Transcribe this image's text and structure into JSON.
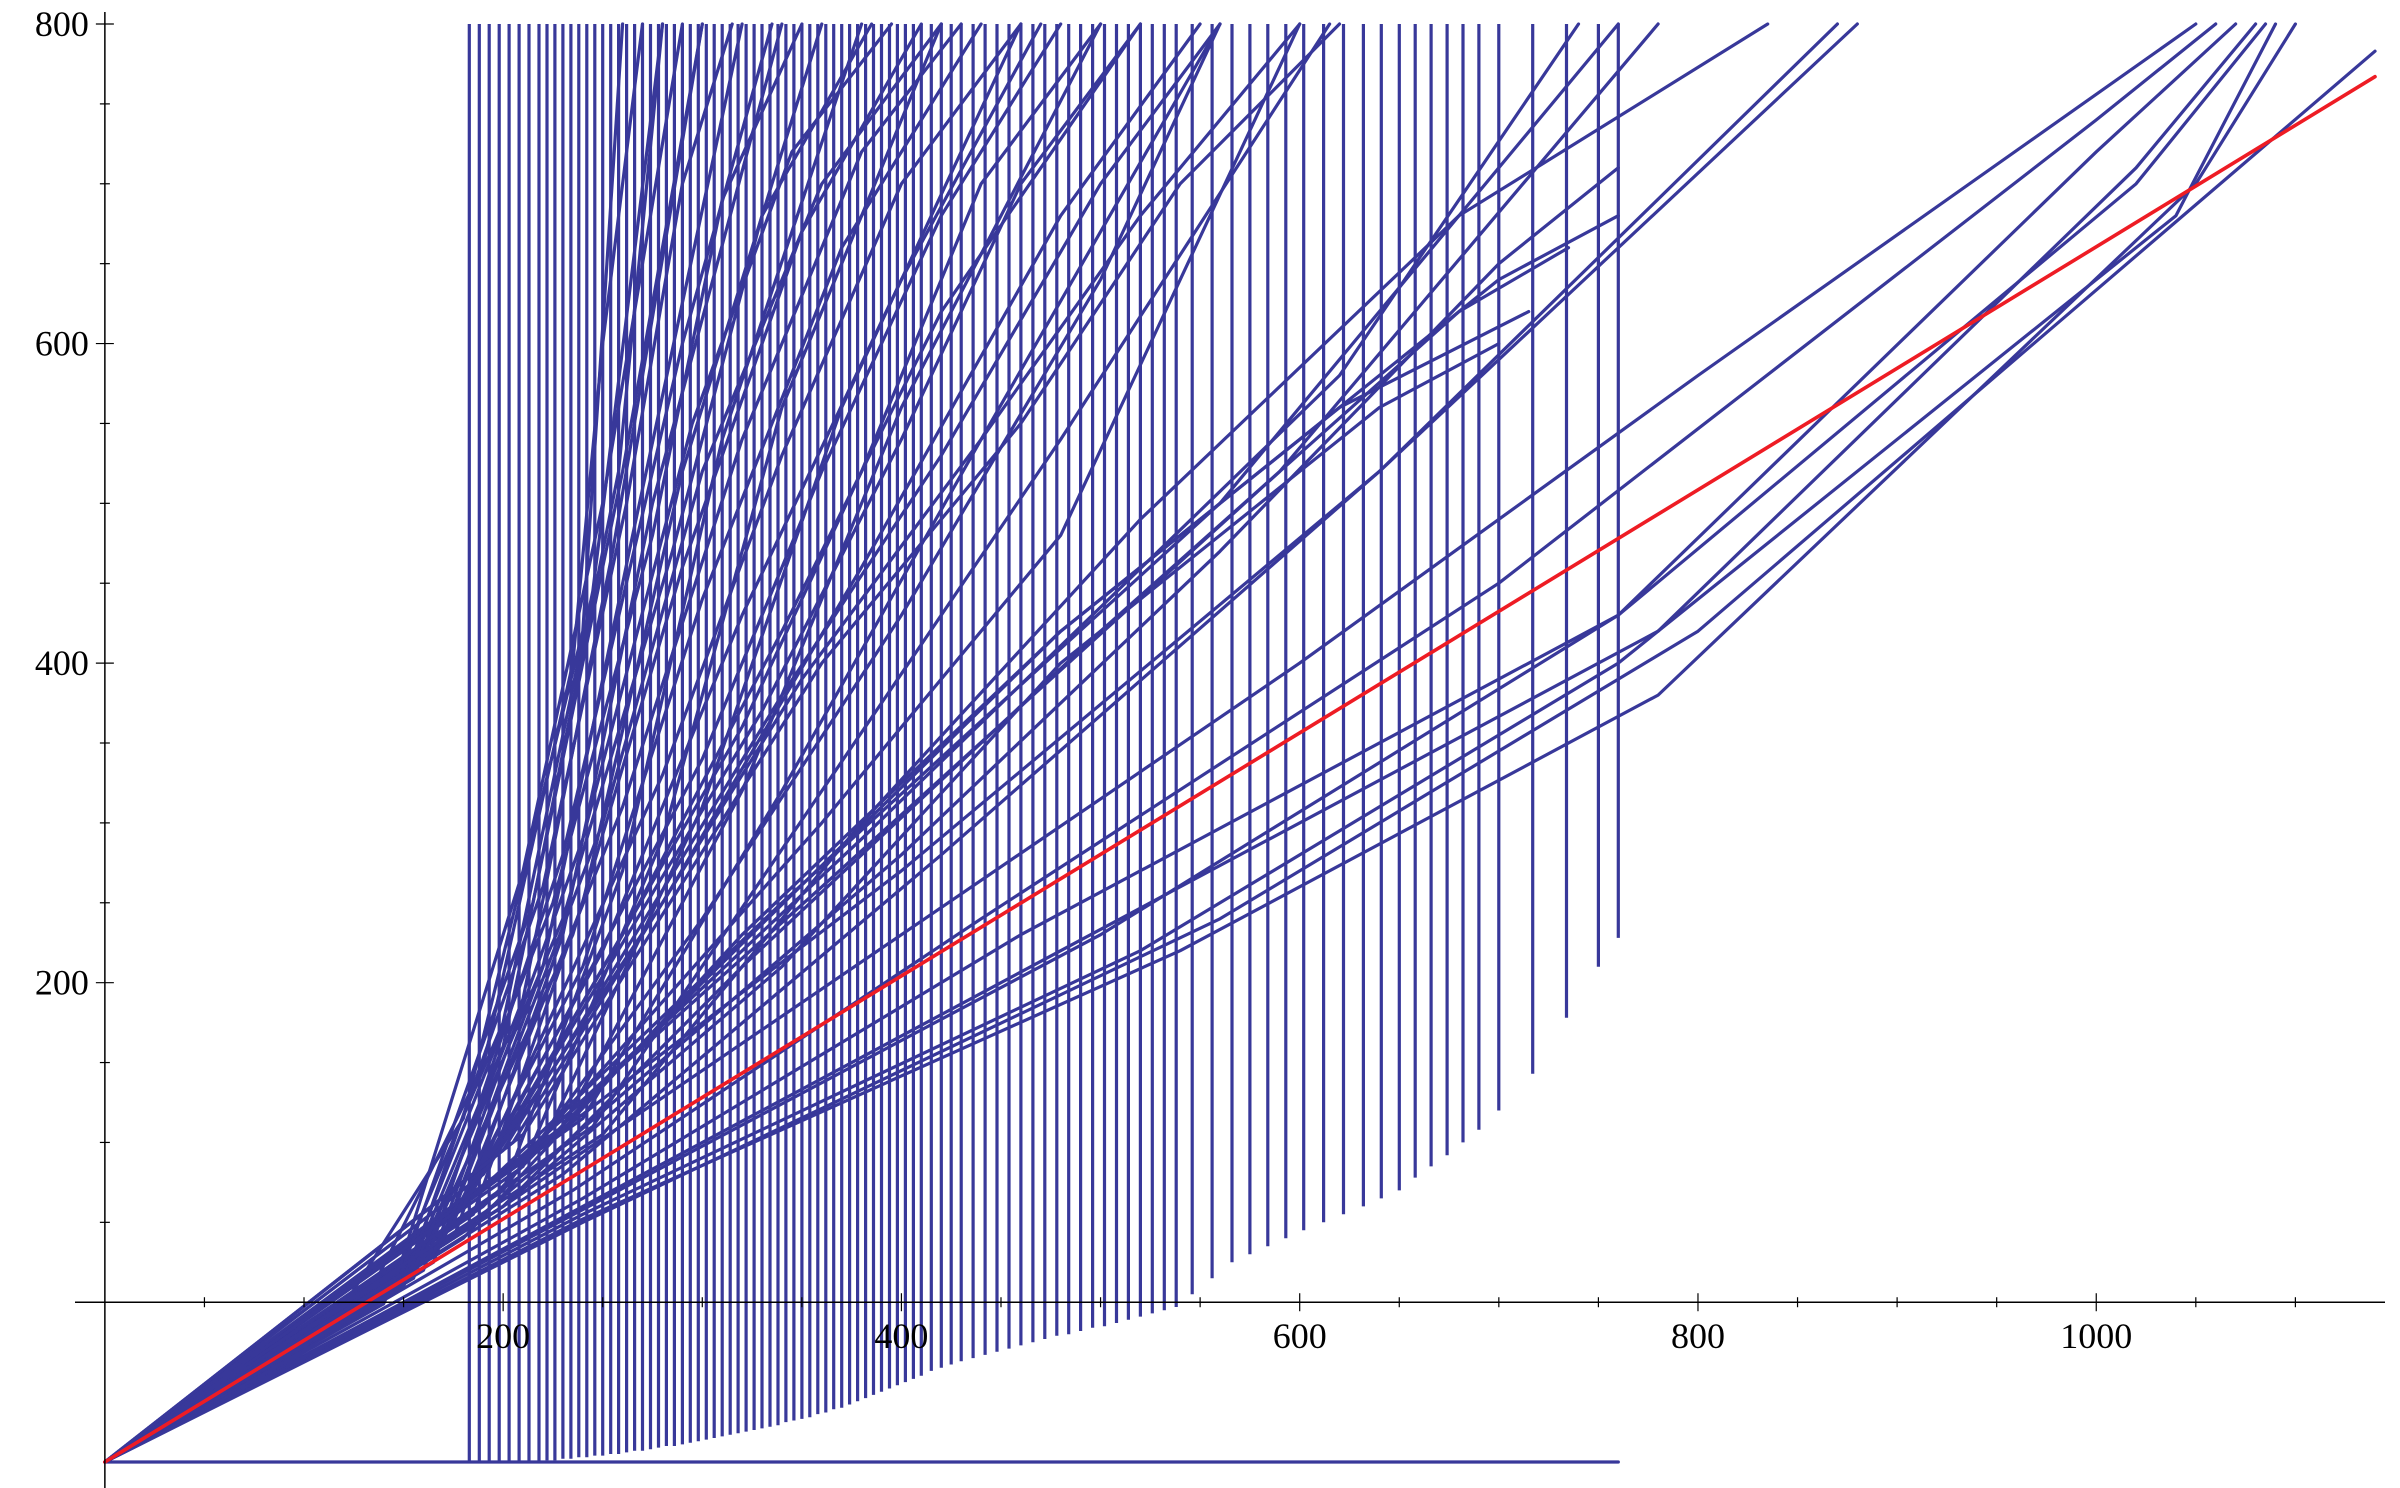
{
  "chart_data": {
    "type": "line",
    "title": "",
    "xlabel": "",
    "ylabel": "",
    "xlim": [
      -15,
      1145
    ],
    "ylim": [
      -100,
      800
    ],
    "origin": [
      0,
      0
    ],
    "grid": false,
    "legend": "none",
    "x_ticks": [
      200,
      400,
      600,
      800,
      1000
    ],
    "y_ticks": [
      200,
      400,
      600,
      800
    ],
    "colors": {
      "family": "#38389a",
      "reference": "#ee1c24"
    },
    "series": [
      {
        "role": "reference",
        "color": "#ee1c24",
        "x": [
          0,
          1140
        ],
        "y": [
          -100,
          767
        ]
      },
      {
        "role": "family",
        "color": "#38389a",
        "x": [
          0,
          760
        ],
        "y": [
          -100,
          -100
        ]
      },
      {
        "role": "family",
        "color": "#38389a",
        "x": [
          0,
          120,
          180,
          240,
          260
        ],
        "y": [
          -100,
          -2,
          115,
          420,
          800
        ]
      },
      {
        "role": "family",
        "color": "#38389a",
        "x": [
          0,
          130,
          190,
          235,
          250,
          270
        ],
        "y": [
          -100,
          -2,
          148,
          400,
          600,
          800
        ]
      },
      {
        "role": "family",
        "color": "#38389a",
        "x": [
          0,
          140,
          200,
          245,
          280
        ],
        "y": [
          -100,
          -1,
          175,
          445,
          800
        ]
      },
      {
        "role": "family",
        "color": "#38389a",
        "x": [
          0,
          155,
          210,
          255,
          300
        ],
        "y": [
          -100,
          15,
          190,
          470,
          800
        ]
      },
      {
        "role": "family",
        "color": "#38389a",
        "x": [
          0,
          165,
          220,
          265,
          320
        ],
        "y": [
          -100,
          25,
          210,
          480,
          800
        ]
      },
      {
        "role": "family",
        "color": "#38389a",
        "x": [
          0,
          175,
          230,
          275,
          340
        ],
        "y": [
          -100,
          40,
          230,
          500,
          800
        ]
      },
      {
        "role": "family",
        "color": "#38389a",
        "x": [
          0,
          185,
          240,
          290,
          360
        ],
        "y": [
          -100,
          55,
          250,
          520,
          800
        ]
      },
      {
        "role": "family",
        "color": "#38389a",
        "x": [
          0,
          200,
          260,
          310,
          380
        ],
        "y": [
          -100,
          70,
          270,
          540,
          800
        ]
      },
      {
        "role": "family",
        "color": "#38389a",
        "x": [
          0,
          210,
          280,
          340,
          420
        ],
        "y": [
          -100,
          85,
          290,
          560,
          800
        ]
      },
      {
        "role": "family",
        "color": "#38389a",
        "x": [
          0,
          220,
          300,
          370,
          460
        ],
        "y": [
          -100,
          100,
          310,
          560,
          800
        ]
      },
      {
        "role": "family",
        "color": "#38389a",
        "x": [
          0,
          230,
          320,
          400,
          500
        ],
        "y": [
          -100,
          110,
          320,
          560,
          800
        ]
      },
      {
        "role": "family",
        "color": "#38389a",
        "x": [
          0,
          240,
          340,
          440,
          560
        ],
        "y": [
          -100,
          115,
          320,
          540,
          800
        ]
      },
      {
        "role": "family",
        "color": "#38389a",
        "x": [
          0,
          245,
          360,
          480,
          615
        ],
        "y": [
          -100,
          110,
          320,
          540,
          800
        ]
      },
      {
        "role": "family",
        "color": "#38389a",
        "x": [
          0,
          250,
          380,
          520,
          680,
          835
        ],
        "y": [
          -100,
          105,
          300,
          490,
          680,
          800
        ]
      },
      {
        "role": "family",
        "color": "#38389a",
        "x": [
          0,
          230,
          420,
          640,
          880
        ],
        "y": [
          -100,
          80,
          280,
          520,
          800
        ]
      },
      {
        "role": "family",
        "color": "#38389a",
        "x": [
          0,
          235,
          440,
          700,
          1000,
          1060
        ],
        "y": [
          -100,
          70,
          240,
          450,
          740,
          800
        ]
      },
      {
        "role": "family",
        "color": "#38389a",
        "x": [
          0,
          240,
          460,
          760,
          1000,
          1070
        ],
        "y": [
          -100,
          65,
          230,
          430,
          720,
          800
        ]
      },
      {
        "role": "family",
        "color": "#38389a",
        "x": [
          0,
          240,
          480,
          780,
          1020,
          1080
        ],
        "y": [
          -100,
          60,
          220,
          420,
          710,
          800
        ]
      },
      {
        "role": "family",
        "color": "#38389a",
        "x": [
          0,
          240,
          500,
          760,
          1020,
          1085
        ],
        "y": [
          -100,
          58,
          230,
          430,
          700,
          800
        ]
      },
      {
        "role": "family",
        "color": "#38389a",
        "x": [
          0,
          240,
          520,
          760,
          1040,
          1090
        ],
        "y": [
          -100,
          55,
          220,
          400,
          680,
          800
        ]
      },
      {
        "role": "family",
        "color": "#38389a",
        "x": [
          0,
          240,
          540,
          780,
          1050,
          1100
        ],
        "y": [
          -100,
          52,
          220,
          380,
          700,
          800
        ]
      },
      {
        "role": "family",
        "color": "#38389a",
        "x": [
          0,
          240,
          560,
          800,
          1140
        ],
        "y": [
          -100,
          50,
          240,
          420,
          783
        ]
      },
      {
        "role": "family",
        "color": "#38389a",
        "x": [
          0,
          200,
          400,
          600,
          800,
          1050
        ],
        "y": [
          -100,
          60,
          230,
          400,
          580,
          800
        ]
      },
      {
        "role": "family",
        "color": "#38389a",
        "x": [
          0,
          190,
          400,
          640,
          870
        ],
        "y": [
          -100,
          70,
          270,
          520,
          800
        ]
      },
      {
        "role": "family",
        "color": "#38389a",
        "x": [
          0,
          185,
          400,
          560,
          700,
          760
        ],
        "y": [
          -100,
          50,
          280,
          470,
          650,
          710
        ]
      },
      {
        "role": "family",
        "color": "#38389a",
        "x": [
          0,
          190,
          300,
          480,
          700,
          760
        ],
        "y": [
          -100,
          60,
          200,
          420,
          640,
          680
        ]
      },
      {
        "role": "family",
        "color": "#38389a",
        "x": [
          0,
          200,
          320,
          500,
          680,
          735
        ],
        "y": [
          -100,
          60,
          210,
          420,
          620,
          660
        ]
      },
      {
        "role": "family",
        "color": "#38389a",
        "x": [
          0,
          180,
          320,
          480,
          620,
          715
        ],
        "y": [
          -100,
          40,
          230,
          420,
          560,
          620
        ]
      },
      {
        "role": "family",
        "color": "#38389a",
        "x": [
          0,
          200,
          340,
          480,
          640,
          700
        ],
        "y": [
          -100,
          60,
          210,
          400,
          560,
          600
        ]
      },
      {
        "role": "family",
        "color": "#38389a",
        "x": [
          0,
          180,
          340,
          560,
          760
        ],
        "y": [
          -100,
          60,
          250,
          500,
          800
        ]
      },
      {
        "role": "family",
        "color": "#38389a",
        "x": [
          0,
          190,
          360,
          590,
          780
        ],
        "y": [
          -100,
          70,
          260,
          520,
          800
        ]
      },
      {
        "role": "family",
        "color": "#38389a",
        "x": [
          0,
          200,
          380,
          620,
          740
        ],
        "y": [
          -100,
          80,
          290,
          580,
          800
        ]
      },
      {
        "role": "family",
        "color": "#38389a",
        "x": [
          0,
          210,
          360,
          480,
          600
        ],
        "y": [
          -100,
          90,
          300,
          480,
          800
        ]
      },
      {
        "role": "family",
        "color": "#38389a",
        "x": [
          0,
          200,
          300,
          400,
          500,
          560
        ],
        "y": [
          -100,
          70,
          240,
          430,
          640,
          800
        ]
      },
      {
        "role": "family",
        "color": "#38389a",
        "x": [
          0,
          190,
          280,
          380,
          480,
          550
        ],
        "y": [
          -100,
          80,
          250,
          460,
          680,
          800
        ]
      },
      {
        "role": "family",
        "color": "#38389a",
        "x": [
          0,
          180,
          260,
          340,
          420,
          520
        ],
        "y": [
          -100,
          60,
          230,
          420,
          620,
          800
        ]
      },
      {
        "role": "family",
        "color": "#38389a",
        "x": [
          0,
          170,
          250,
          320,
          400,
          470
        ],
        "y": [
          -100,
          40,
          220,
          430,
          640,
          800
        ]
      },
      {
        "role": "family",
        "color": "#38389a",
        "x": [
          0,
          165,
          240,
          300,
          370,
          440
        ],
        "y": [
          -100,
          30,
          210,
          440,
          660,
          800
        ]
      },
      {
        "role": "family",
        "color": "#38389a",
        "x": [
          0,
          160,
          235,
          290,
          350,
          410
        ],
        "y": [
          -100,
          30,
          230,
          460,
          670,
          800
        ]
      },
      {
        "role": "family",
        "color": "#38389a",
        "x": [
          0,
          155,
          230,
          285,
          330,
          385
        ],
        "y": [
          -100,
          20,
          240,
          470,
          680,
          800
        ]
      },
      {
        "role": "family",
        "color": "#38389a",
        "x": [
          0,
          150,
          225,
          275,
          310,
          350
        ],
        "y": [
          -100,
          15,
          250,
          480,
          690,
          800
        ]
      },
      {
        "role": "family",
        "color": "#38389a",
        "x": [
          0,
          150,
          220,
          262,
          290,
          315
        ],
        "y": [
          -100,
          10,
          260,
          500,
          700,
          800
        ]
      },
      {
        "role": "family",
        "color": "#38389a",
        "x": [
          0,
          145,
          215,
          258,
          280
        ],
        "y": [
          -100,
          5,
          250,
          520,
          800
        ]
      },
      {
        "role": "family",
        "color": "#38389a",
        "x": [
          0,
          145,
          210,
          250,
          270,
          290
        ],
        "y": [
          -100,
          10,
          270,
          500,
          650,
          800
        ]
      },
      {
        "role": "family",
        "color": "#38389a",
        "x": [
          0,
          150,
          200,
          260,
          300
        ],
        "y": [
          -100,
          10,
          160,
          520,
          800
        ]
      },
      {
        "role": "family",
        "color": "#38389a",
        "x": [
          0,
          160,
          230,
          290,
          335
        ],
        "y": [
          -100,
          20,
          280,
          600,
          800
        ]
      },
      {
        "role": "family",
        "color": "#38389a",
        "x": [
          0,
          165,
          240,
          295,
          345,
          395
        ],
        "y": [
          -100,
          30,
          290,
          550,
          720,
          800
        ]
      },
      {
        "role": "family",
        "color": "#38389a",
        "x": [
          0,
          170,
          250,
          300,
          360,
          420
        ],
        "y": [
          -100,
          40,
          300,
          520,
          700,
          800
        ]
      },
      {
        "role": "family",
        "color": "#38389a",
        "x": [
          0,
          175,
          260,
          320,
          380,
          430
        ],
        "y": [
          -100,
          50,
          310,
          540,
          720,
          800
        ]
      },
      {
        "role": "family",
        "color": "#38389a",
        "x": [
          0,
          180,
          280,
          340,
          400,
          460
        ],
        "y": [
          -100,
          60,
          330,
          530,
          700,
          800
        ]
      },
      {
        "role": "family",
        "color": "#38389a",
        "x": [
          0,
          185,
          300,
          360,
          420,
          480
        ],
        "y": [
          -100,
          70,
          340,
          520,
          680,
          800
        ]
      },
      {
        "role": "family",
        "color": "#38389a",
        "x": [
          0,
          190,
          320,
          380,
          440,
          500
        ],
        "y": [
          -100,
          80,
          360,
          520,
          700,
          800
        ]
      },
      {
        "role": "family",
        "color": "#38389a",
        "x": [
          0,
          195,
          330,
          400,
          460,
          520
        ],
        "y": [
          -100,
          90,
          370,
          540,
          700,
          800
        ]
      },
      {
        "role": "family",
        "color": "#38389a",
        "x": [
          0,
          200,
          340,
          420,
          500,
          560
        ],
        "y": [
          -100,
          95,
          380,
          530,
          700,
          800
        ]
      },
      {
        "role": "family",
        "color": "#38389a",
        "x": [
          0,
          205,
          350,
          440,
          520,
          600
        ],
        "y": [
          -100,
          100,
          390,
          540,
          680,
          800
        ]
      },
      {
        "role": "family",
        "color": "#38389a",
        "x": [
          0,
          210,
          360,
          460,
          540,
          620
        ],
        "y": [
          -100,
          105,
          400,
          550,
          700,
          800
        ]
      }
    ],
    "drop_lines": {
      "comment": "vertical strokes from the upper bound down to the listed end value",
      "color": "#38389a",
      "x": [
        183,
        188,
        193,
        198,
        203,
        208,
        213,
        218,
        222,
        226,
        230,
        234,
        238,
        242,
        246,
        250,
        254,
        258,
        262,
        266,
        270,
        274,
        278,
        282,
        286,
        290,
        294,
        298,
        302,
        306,
        310,
        314,
        318,
        322,
        326,
        330,
        334,
        338,
        342,
        346,
        350,
        354,
        358,
        362,
        366,
        370,
        374,
        378,
        382,
        386,
        390,
        394,
        398,
        402,
        406,
        410,
        415,
        420,
        425,
        430,
        436,
        442,
        448,
        454,
        460,
        466,
        472,
        478,
        484,
        490,
        496,
        502,
        508,
        514,
        520,
        526,
        532,
        538,
        546,
        556,
        566,
        575,
        584,
        593,
        602,
        612,
        622,
        632,
        641,
        650,
        658,
        666,
        674,
        682,
        690,
        700,
        717,
        734,
        750,
        760
      ],
      "end_y": [
        -100,
        -100,
        -100,
        -100,
        -100,
        -100,
        -100,
        -100,
        -99,
        -99,
        -98,
        -98,
        -97,
        -97,
        -96,
        -96,
        -95,
        -95,
        -94,
        -93,
        -93,
        -92,
        -91,
        -90,
        -90,
        -89,
        -88,
        -87,
        -86,
        -85,
        -84,
        -83,
        -82,
        -81,
        -80,
        -79,
        -78,
        -77,
        -75,
        -74,
        -73,
        -72,
        -70,
        -69,
        -67,
        -66,
        -64,
        -62,
        -60,
        -58,
        -56,
        -54,
        -52,
        -50,
        -48,
        -46,
        -43,
        -41,
        -39,
        -37,
        -35,
        -33,
        -31,
        -29,
        -27,
        -25,
        -23,
        -21,
        -20,
        -18,
        -16,
        -15,
        -13,
        -11,
        -9,
        -7,
        -5,
        -3,
        5,
        15,
        25,
        30,
        35,
        40,
        45,
        50,
        55,
        60,
        65,
        70,
        78,
        85,
        92,
        100,
        108,
        120,
        143,
        178,
        210,
        228
      ],
      "top_y": 800
    }
  }
}
